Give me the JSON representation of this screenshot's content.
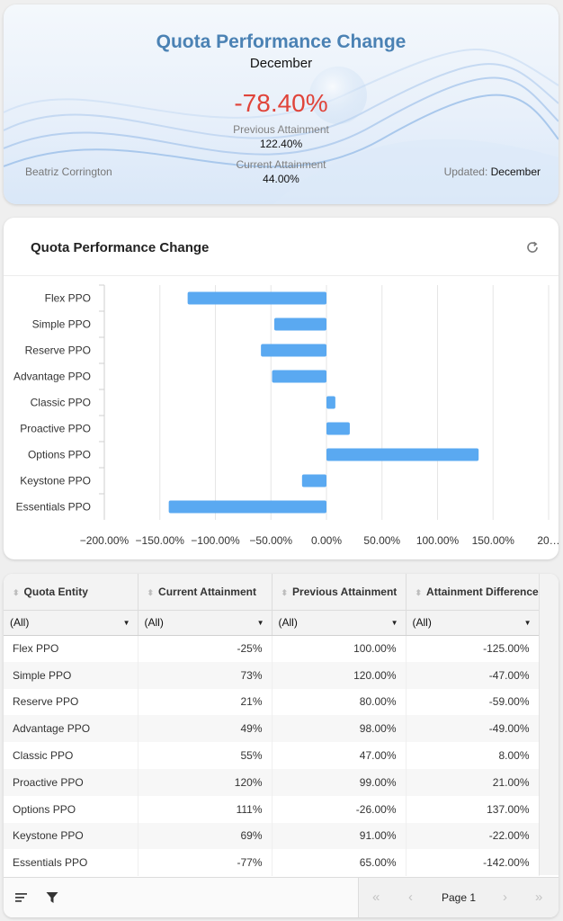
{
  "kpi": {
    "title": "Quota Performance Change",
    "subtitle": "December",
    "change": "-78.40%",
    "previous_label": "Previous Attainment",
    "previous_value": "122.40%",
    "current_label": "Current Attainment",
    "current_value": "44.00%",
    "owner": "Beatriz Corrington",
    "updated_label": "Updated:",
    "updated_value": "December",
    "colors": {
      "title": "#4b82b4",
      "change": "#e0443a"
    }
  },
  "chart_card": {
    "title": "Quota Performance Change",
    "refresh_icon": "refresh-icon"
  },
  "chart_data": {
    "type": "bar",
    "orientation": "horizontal",
    "title": "Quota Performance Change",
    "categories": [
      "Flex PPO",
      "Simple PPO",
      "Reserve PPO",
      "Advantage PPO",
      "Classic PPO",
      "Proactive PPO",
      "Options PPO",
      "Keystone PPO",
      "Essentials PPO"
    ],
    "values": [
      -125,
      -47,
      -59,
      -49,
      8,
      21,
      137,
      -22,
      -142
    ],
    "xlim": [
      -200,
      200
    ],
    "x_ticks": [
      "−200.00%",
      "−150.00%",
      "−100.00%",
      "−50.00%",
      "0.00%",
      "50.00%",
      "100.00%",
      "150.00%",
      "20…"
    ],
    "bar_color": "#5aa9f1",
    "grid": true
  },
  "table": {
    "columns": [
      "Quota Entity",
      "Current Attainment",
      "Previous Attainment",
      "Attainment Difference"
    ],
    "filters": [
      "(All)",
      "(All)",
      "(All)",
      "(All)"
    ],
    "rows": [
      [
        "Flex PPO",
        "-25%",
        "100.00%",
        "-125.00%"
      ],
      [
        "Simple PPO",
        "73%",
        "120.00%",
        "-47.00%"
      ],
      [
        "Reserve PPO",
        "21%",
        "80.00%",
        "-59.00%"
      ],
      [
        "Advantage PPO",
        "49%",
        "98.00%",
        "-49.00%"
      ],
      [
        "Classic PPO",
        "55%",
        "47.00%",
        "8.00%"
      ],
      [
        "Proactive PPO",
        "120%",
        "99.00%",
        "21.00%"
      ],
      [
        "Options PPO",
        "111%",
        "-26.00%",
        "137.00%"
      ],
      [
        "Keystone PPO",
        "69%",
        "91.00%",
        "-22.00%"
      ],
      [
        "Essentials PPO",
        "-77%",
        "65.00%",
        "-142.00%"
      ]
    ],
    "footer": {
      "page_label": "Page 1",
      "icons": [
        "columns-icon",
        "filter-icon",
        "first-page-icon",
        "prev-page-icon",
        "next-page-icon",
        "last-page-icon"
      ]
    }
  }
}
